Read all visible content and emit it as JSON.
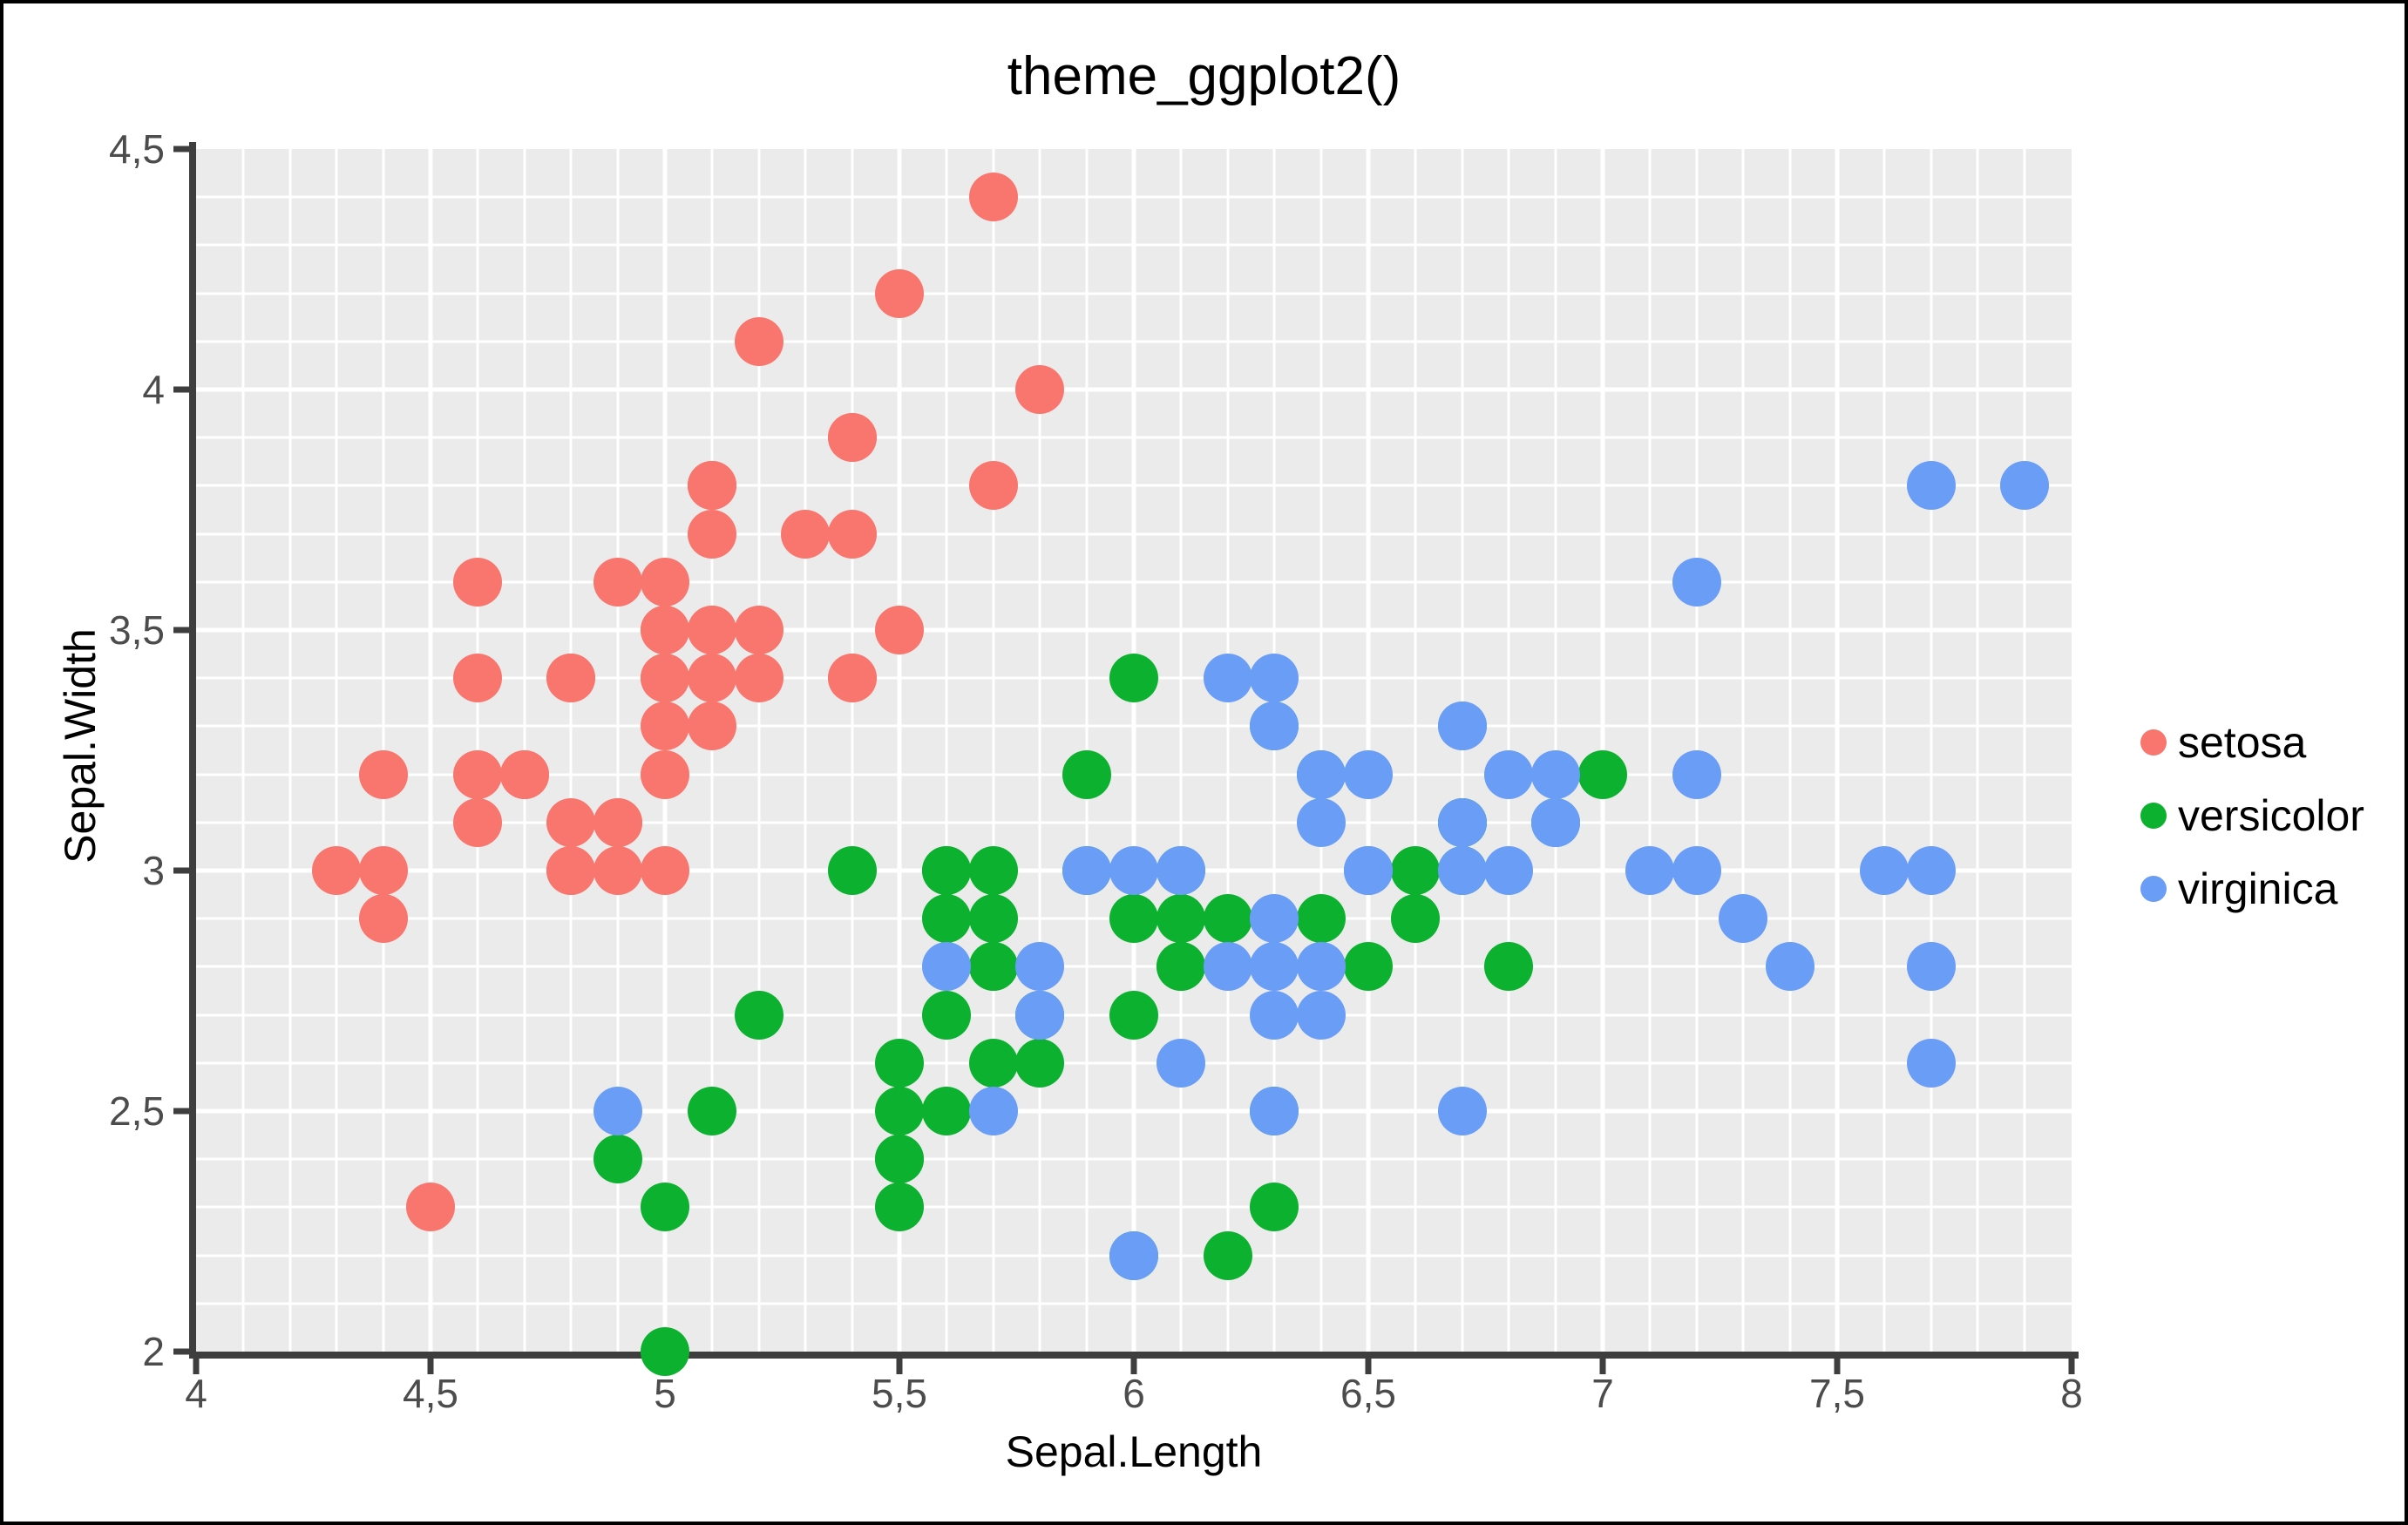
{
  "chart_data": {
    "type": "scatter",
    "title": "theme_ggplot2()",
    "xlabel": "Sepal.Length",
    "ylabel": "Sepal.Width",
    "xlim": [
      4,
      8
    ],
    "ylim": [
      2,
      4.5
    ],
    "x_ticks": {
      "values": [
        4,
        4.5,
        5,
        5.5,
        6,
        6.5,
        7,
        7.5,
        8
      ],
      "labels": [
        "4",
        "4,5",
        "5",
        "5,5",
        "6",
        "6,5",
        "7",
        "7,5",
        "8"
      ]
    },
    "y_ticks": {
      "values": [
        2,
        2.5,
        3,
        3.5,
        4,
        4.5
      ],
      "labels": [
        "2",
        "2,5",
        "3",
        "3,5",
        "4",
        "4,5"
      ]
    },
    "minor_grid_step": 0.1,
    "major_grid_step": 0.5,
    "grid": true,
    "legend_position": "right",
    "panel_background": "#EBEBEB",
    "gridline_color": "#FFFFFF",
    "axis_line_color": "#3E3E3E",
    "tick_label_color": "#4C4C4C",
    "text_color": "#000000",
    "marker_size_px": 56,
    "series": [
      {
        "name": "setosa",
        "color": "#F8766D",
        "points": [
          [
            5.1,
            3.5
          ],
          [
            4.9,
            3.0
          ],
          [
            4.7,
            3.2
          ],
          [
            4.6,
            3.1
          ],
          [
            5.0,
            3.6
          ],
          [
            5.4,
            3.9
          ],
          [
            4.6,
            3.4
          ],
          [
            5.0,
            3.4
          ],
          [
            4.4,
            2.9
          ],
          [
            4.9,
            3.1
          ],
          [
            5.4,
            3.7
          ],
          [
            4.8,
            3.4
          ],
          [
            4.8,
            3.0
          ],
          [
            4.3,
            3.0
          ],
          [
            5.8,
            4.0
          ],
          [
            5.7,
            4.4
          ],
          [
            5.4,
            3.9
          ],
          [
            5.1,
            3.5
          ],
          [
            5.7,
            3.8
          ],
          [
            5.1,
            3.8
          ],
          [
            5.4,
            3.4
          ],
          [
            5.1,
            3.7
          ],
          [
            4.6,
            3.6
          ],
          [
            5.1,
            3.3
          ],
          [
            4.8,
            3.4
          ],
          [
            5.0,
            3.0
          ],
          [
            5.0,
            3.4
          ],
          [
            5.2,
            3.5
          ],
          [
            5.2,
            3.4
          ],
          [
            4.7,
            3.2
          ],
          [
            4.8,
            3.1
          ],
          [
            5.4,
            3.4
          ],
          [
            5.2,
            4.1
          ],
          [
            5.5,
            4.2
          ],
          [
            4.9,
            3.1
          ],
          [
            5.0,
            3.2
          ],
          [
            5.5,
            3.5
          ],
          [
            4.9,
            3.6
          ],
          [
            4.4,
            3.0
          ],
          [
            5.1,
            3.4
          ],
          [
            5.0,
            3.5
          ],
          [
            4.5,
            2.3
          ],
          [
            4.4,
            3.2
          ],
          [
            5.0,
            3.5
          ],
          [
            5.1,
            3.8
          ],
          [
            4.8,
            3.0
          ],
          [
            5.1,
            3.8
          ],
          [
            4.6,
            3.2
          ],
          [
            5.3,
            3.7
          ],
          [
            5.0,
            3.3
          ]
        ]
      },
      {
        "name": "versicolor",
        "color": "#0CB22F",
        "points": [
          [
            7.0,
            3.2
          ],
          [
            6.4,
            3.2
          ],
          [
            6.9,
            3.1
          ],
          [
            5.5,
            2.3
          ],
          [
            6.5,
            2.8
          ],
          [
            5.7,
            2.8
          ],
          [
            6.3,
            3.3
          ],
          [
            4.9,
            2.4
          ],
          [
            6.6,
            2.9
          ],
          [
            5.2,
            2.7
          ],
          [
            5.0,
            2.0
          ],
          [
            5.9,
            3.0
          ],
          [
            6.0,
            2.2
          ],
          [
            6.1,
            2.9
          ],
          [
            5.6,
            2.9
          ],
          [
            6.7,
            3.1
          ],
          [
            5.6,
            3.0
          ],
          [
            5.8,
            2.7
          ],
          [
            6.2,
            2.2
          ],
          [
            5.6,
            2.5
          ],
          [
            5.9,
            3.2
          ],
          [
            6.1,
            2.8
          ],
          [
            6.3,
            2.5
          ],
          [
            6.1,
            2.8
          ],
          [
            6.4,
            2.9
          ],
          [
            6.6,
            3.0
          ],
          [
            6.8,
            2.8
          ],
          [
            6.7,
            3.0
          ],
          [
            6.0,
            2.9
          ],
          [
            5.7,
            2.6
          ],
          [
            5.5,
            2.4
          ],
          [
            5.5,
            2.4
          ],
          [
            5.8,
            2.7
          ],
          [
            6.0,
            2.7
          ],
          [
            5.4,
            3.0
          ],
          [
            6.0,
            3.4
          ],
          [
            6.7,
            3.1
          ],
          [
            6.3,
            2.3
          ],
          [
            5.6,
            3.0
          ],
          [
            5.5,
            2.5
          ],
          [
            5.5,
            2.6
          ],
          [
            6.1,
            3.0
          ],
          [
            5.8,
            2.6
          ],
          [
            5.0,
            2.3
          ],
          [
            5.6,
            2.7
          ],
          [
            5.7,
            3.0
          ],
          [
            5.7,
            2.9
          ],
          [
            6.2,
            2.9
          ],
          [
            5.1,
            2.5
          ],
          [
            5.7,
            2.8
          ]
        ]
      },
      {
        "name": "virginica",
        "color": "#6A9DF5",
        "points": [
          [
            6.3,
            3.3
          ],
          [
            5.8,
            2.7
          ],
          [
            7.1,
            3.0
          ],
          [
            6.3,
            2.9
          ],
          [
            6.5,
            3.0
          ],
          [
            7.6,
            3.0
          ],
          [
            4.9,
            2.5
          ],
          [
            7.3,
            2.9
          ],
          [
            6.7,
            2.5
          ],
          [
            7.2,
            3.6
          ],
          [
            6.5,
            3.2
          ],
          [
            6.4,
            2.7
          ],
          [
            6.8,
            3.0
          ],
          [
            5.7,
            2.5
          ],
          [
            5.8,
            2.8
          ],
          [
            6.4,
            3.2
          ],
          [
            6.5,
            3.0
          ],
          [
            7.7,
            3.8
          ],
          [
            7.7,
            2.6
          ],
          [
            6.0,
            2.2
          ],
          [
            6.9,
            3.2
          ],
          [
            5.6,
            2.8
          ],
          [
            7.7,
            2.8
          ],
          [
            6.3,
            2.7
          ],
          [
            6.7,
            3.3
          ],
          [
            7.2,
            3.2
          ],
          [
            6.2,
            2.8
          ],
          [
            6.1,
            3.0
          ],
          [
            6.4,
            2.8
          ],
          [
            7.2,
            3.0
          ],
          [
            7.4,
            2.8
          ],
          [
            7.9,
            3.8
          ],
          [
            6.4,
            2.8
          ],
          [
            6.3,
            2.8
          ],
          [
            6.1,
            2.6
          ],
          [
            7.7,
            3.0
          ],
          [
            6.3,
            3.4
          ],
          [
            6.4,
            3.1
          ],
          [
            6.0,
            3.0
          ],
          [
            6.9,
            3.1
          ],
          [
            6.7,
            3.1
          ],
          [
            6.9,
            3.1
          ],
          [
            5.8,
            2.7
          ],
          [
            6.8,
            3.2
          ],
          [
            6.7,
            3.3
          ],
          [
            6.7,
            3.0
          ],
          [
            6.3,
            2.5
          ],
          [
            6.5,
            3.0
          ],
          [
            6.2,
            3.4
          ],
          [
            5.9,
            3.0
          ]
        ]
      }
    ]
  },
  "legend": {
    "items": [
      {
        "label": "setosa"
      },
      {
        "label": "versicolor"
      },
      {
        "label": "virginica"
      }
    ]
  }
}
